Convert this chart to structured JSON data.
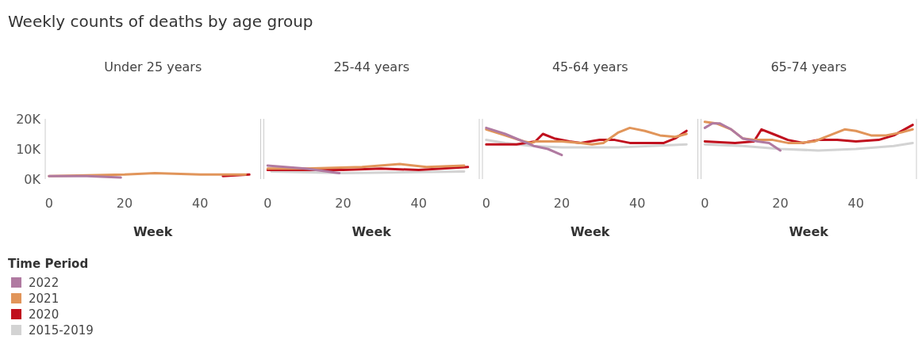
{
  "chart_data": [
    {
      "type": "line",
      "title": "Weekly counts of deaths by age group",
      "subtitle": "Under 25 years",
      "xlabel": "Week",
      "legend_title": "Time Period",
      "legend": "bottom left",
      "xlim": [
        -1,
        56
      ],
      "xticks": [
        0,
        20,
        40
      ],
      "ylim": [
        0,
        20000
      ],
      "yticks": [
        {
          "value": 0,
          "label": "0K"
        },
        {
          "value": 10000,
          "label": "10K"
        },
        {
          "value": 20000,
          "label": "20K"
        }
      ],
      "series": [
        {
          "name": "2022",
          "color": "#b07aa1",
          "x": [
            0,
            10,
            19
          ],
          "values": [
            1000,
            1000,
            500
          ]
        },
        {
          "name": "2021",
          "color": "#e1955a",
          "x": [
            0,
            20,
            28,
            40,
            52
          ],
          "values": [
            1000,
            1500,
            2000,
            1500,
            1500
          ]
        },
        {
          "name": "2020",
          "color": "#c0101e",
          "x": [
            46,
            53
          ],
          "values": [
            1000,
            1500
          ]
        },
        {
          "name": "2015-2019",
          "color": "#d3d3d3"
        }
      ]
    },
    {
      "type": "line",
      "subtitle": "25-44 years",
      "xlabel": "Week",
      "tick_labels": "x",
      "xlim": [
        -1,
        56
      ],
      "xticks": [
        0,
        20,
        40
      ],
      "ylim": [
        0,
        20000
      ],
      "series": [
        {
          "color": "#d3d3d3",
          "x": [
            1,
            20,
            52
          ],
          "values": [
            2500,
            2000,
            2500
          ]
        },
        {
          "color": "#c0101e",
          "x": [
            0,
            20,
            30,
            40,
            53
          ],
          "values": [
            3000,
            3000,
            3500,
            3000,
            4000
          ]
        },
        {
          "color": "#e1955a",
          "x": [
            0,
            10,
            25,
            35,
            42,
            52
          ],
          "values": [
            3500,
            3500,
            4000,
            5000,
            4000,
            4500
          ]
        },
        {
          "color": "#b07aa1",
          "x": [
            0,
            10,
            19
          ],
          "values": [
            4500,
            3500,
            2000
          ]
        }
      ]
    },
    {
      "type": "line",
      "subtitle": "45-64 years",
      "xlabel": "Week",
      "tick_labels": "x",
      "xlim": [
        -1,
        56
      ],
      "xticks": [
        0,
        20,
        40
      ],
      "ylim": [
        0,
        20000
      ],
      "series": [
        {
          "color": "#d3d3d3",
          "x": [
            0,
            5,
            12,
            20,
            35,
            53
          ],
          "values": [
            13000,
            12000,
            11000,
            10500,
            10500,
            11500
          ]
        },
        {
          "color": "#c0101e",
          "x": [
            0,
            8,
            13,
            15,
            18,
            22,
            25,
            30,
            34,
            38,
            43,
            47,
            50,
            53
          ],
          "values": [
            11500,
            11500,
            12500,
            15000,
            13500,
            12500,
            12000,
            13000,
            13000,
            12000,
            12000,
            12000,
            13500,
            16000
          ]
        },
        {
          "color": "#e1955a",
          "x": [
            0,
            5,
            10,
            12,
            13,
            20,
            25,
            28,
            31,
            35,
            38,
            42,
            46,
            50,
            53
          ],
          "values": [
            16500,
            14500,
            12500,
            12000,
            12500,
            12500,
            12000,
            11500,
            12000,
            15500,
            17000,
            16000,
            14500,
            14000,
            15000
          ]
        },
        {
          "color": "#b07aa1",
          "x": [
            0,
            5,
            12.6,
            16.3,
            20
          ],
          "values": [
            17000,
            15000,
            11000,
            10000,
            8000
          ]
        }
      ]
    },
    {
      "type": "line",
      "subtitle": "65-74 years",
      "xlabel": "Week",
      "tick_labels": "x",
      "xlim": [
        -1,
        56
      ],
      "xticks": [
        0,
        20,
        40
      ],
      "ylim": [
        0,
        20000
      ],
      "series": [
        {
          "color": "#d3d3d3",
          "x": [
            0,
            10,
            20,
            30,
            40,
            50,
            55
          ],
          "values": [
            11500,
            11000,
            10000,
            9500,
            10000,
            11000,
            12000
          ]
        },
        {
          "color": "#c0101e",
          "x": [
            0,
            8,
            13,
            15,
            18,
            22,
            26,
            30,
            35,
            40,
            46,
            50,
            55
          ],
          "values": [
            12500,
            12000,
            12500,
            16500,
            15000,
            13000,
            12000,
            13000,
            13000,
            12500,
            13000,
            14500,
            18000
          ]
        },
        {
          "color": "#e1955a",
          "x": [
            0,
            3,
            7,
            10,
            13,
            18,
            22,
            25,
            29,
            33,
            37,
            40,
            44,
            48,
            52,
            55
          ],
          "values": [
            19000,
            18500,
            16500,
            13500,
            13000,
            13000,
            12000,
            12000,
            12500,
            14500,
            16500,
            16000,
            14500,
            14500,
            15500,
            16500
          ]
        },
        {
          "color": "#b07aa1",
          "x": [
            0,
            2,
            4,
            7,
            10,
            14,
            17,
            20
          ],
          "values": [
            17000,
            18500,
            18500,
            16500,
            13500,
            12500,
            12000,
            9500
          ]
        }
      ]
    }
  ]
}
